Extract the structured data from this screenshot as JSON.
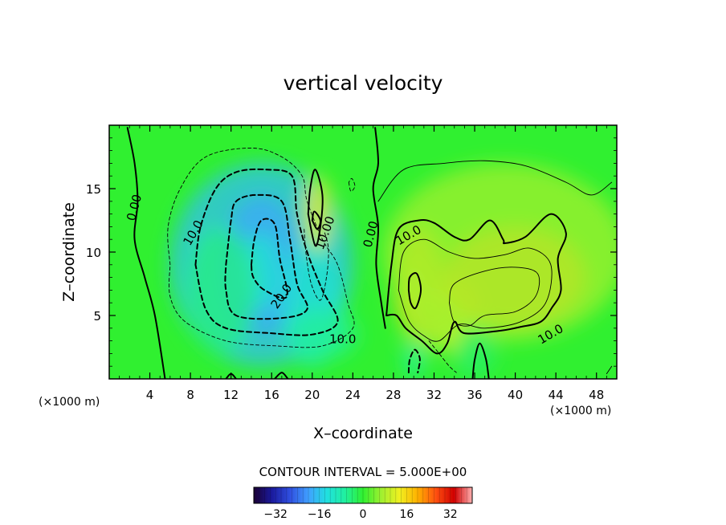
{
  "chart_data": {
    "type": "heatmap",
    "title": "vertical velocity",
    "xlabel": "X–coordinate",
    "ylabel": "Z–coordinate",
    "x_unit_left": "(×1000 m)",
    "x_unit_right": "(×1000 m)",
    "xlim": [
      0,
      50
    ],
    "ylim": [
      0,
      20
    ],
    "xticks": [
      4,
      8,
      12,
      16,
      20,
      24,
      28,
      32,
      36,
      40,
      44,
      48
    ],
    "yticks": [
      5,
      10,
      15
    ],
    "contour_interval_text": "CONTOUR INTERVAL = 5.000E+00",
    "colorbar": {
      "range": [
        -40,
        40
      ],
      "ticks": [
        -32,
        -16,
        0,
        16,
        32
      ],
      "tick_labels": [
        "−32",
        "−16",
        "0",
        "16",
        "32"
      ],
      "colors": [
        "#1a0033",
        "#1a1a9e",
        "#3050e0",
        "#40a0ff",
        "#20e0e0",
        "#20f0a0",
        "#30f030",
        "#a0f030",
        "#f0f020",
        "#ffb000",
        "#ff5010",
        "#d00000",
        "#ffb0b0"
      ]
    },
    "contour_labels": [
      {
        "text": "0.00",
        "x": 2.5,
        "z": 13.5,
        "rotate": -75
      },
      {
        "text": "10.0",
        "x": 8.3,
        "z": 11.5,
        "rotate": -60
      },
      {
        "text": "20.0",
        "x": 17.0,
        "z": 6.5,
        "rotate": -55
      },
      {
        "text": "10.00",
        "x": 21.3,
        "z": 11.5,
        "rotate": -70
      },
      {
        "text": "10.0",
        "x": 23.0,
        "z": 3.1,
        "rotate": 0
      },
      {
        "text": "0.00",
        "x": 25.8,
        "z": 11.4,
        "rotate": -75
      },
      {
        "text": "10.0",
        "x": 29.5,
        "z": 11.3,
        "rotate": -30
      },
      {
        "text": "10.0",
        "x": 43.5,
        "z": 3.5,
        "rotate": -30
      }
    ],
    "blobs": [
      {
        "x": 15,
        "z": 9,
        "rx": 9,
        "rz": 8,
        "value": -14
      },
      {
        "x": 15,
        "z": 9,
        "rx": 4,
        "rz": 5.5,
        "value": -16
      },
      {
        "x": 15,
        "z": 8.5,
        "rx": 2,
        "rz": 3,
        "value": -10
      },
      {
        "x": 20,
        "z": 6,
        "rx": 3,
        "rz": 5,
        "value": -10
      },
      {
        "x": 11,
        "z": 7,
        "rx": 3.5,
        "rz": 5,
        "value": -4
      },
      {
        "x": 21,
        "z": 3.5,
        "rx": 3.5,
        "rz": 2,
        "value": -5
      },
      {
        "x": 20.5,
        "z": 13,
        "rx": 1.4,
        "rz": 3,
        "value": 12
      },
      {
        "x": 20.5,
        "z": 12,
        "rx": 0.8,
        "rz": 1,
        "value": 8
      },
      {
        "x": 30.5,
        "z": 7.5,
        "rx": 2.5,
        "rz": 4.5,
        "value": 14
      },
      {
        "x": 30,
        "z": 7,
        "rx": 1.2,
        "rz": 2,
        "value": 8
      },
      {
        "x": 34,
        "z": 5,
        "rx": 2.5,
        "rz": 3,
        "value": 10
      },
      {
        "x": 40,
        "z": 8,
        "rx": 7,
        "rz": 4,
        "value": 16
      },
      {
        "x": 39,
        "z": 10,
        "rx": 12,
        "rz": 7,
        "value": 6
      },
      {
        "x": 31,
        "z": 4,
        "rx": 2,
        "rz": 2,
        "value": 6
      },
      {
        "x": 36,
        "z": 2,
        "rx": 2,
        "rz": 2,
        "value": -3
      },
      {
        "x": 30,
        "z": 1.5,
        "rx": 1,
        "rz": 1.5,
        "value": -6
      }
    ],
    "contours": [
      {
        "style": "bold-solid",
        "points": [
          [
            1.8,
            19.8
          ],
          [
            2.5,
            17
          ],
          [
            2.8,
            14
          ],
          [
            2.5,
            11
          ],
          [
            3.5,
            8
          ],
          [
            4.5,
            5
          ],
          [
            5.5,
            0
          ]
        ]
      },
      {
        "style": "bold-solid",
        "points": [
          [
            26.2,
            19.8
          ],
          [
            26.5,
            17
          ],
          [
            26,
            15
          ],
          [
            26.5,
            12
          ],
          [
            26.3,
            9
          ],
          [
            26.8,
            6
          ],
          [
            27.2,
            4
          ]
        ]
      },
      {
        "style": "thin-dashed",
        "points": [
          [
            6,
            9
          ],
          [
            5.8,
            12
          ],
          [
            7,
            15
          ],
          [
            9.5,
            17.5
          ],
          [
            14,
            18.2
          ],
          [
            17,
            17.5
          ],
          [
            19,
            16
          ],
          [
            19.5,
            14
          ],
          [
            21,
            11
          ],
          [
            22.5,
            9
          ],
          [
            23.5,
            6
          ],
          [
            24,
            4
          ],
          [
            21,
            2.6
          ],
          [
            16.5,
            2.6
          ],
          [
            11.5,
            3
          ],
          [
            7.5,
            4.5
          ],
          [
            6,
            6.5
          ],
          [
            6,
            9
          ]
        ]
      },
      {
        "style": "bold-dashed",
        "points": [
          [
            8.5,
            9
          ],
          [
            9,
            12
          ],
          [
            10.5,
            15
          ],
          [
            12.5,
            16.3
          ],
          [
            15.5,
            16.5
          ],
          [
            18,
            16
          ],
          [
            18.5,
            13
          ],
          [
            19.5,
            10
          ],
          [
            21,
            7
          ],
          [
            22.5,
            4.5
          ],
          [
            20,
            3.5
          ],
          [
            16,
            3.6
          ],
          [
            11.5,
            4
          ],
          [
            9.5,
            5.5
          ],
          [
            8.5,
            9
          ]
        ]
      },
      {
        "style": "bold-dashed",
        "points": [
          [
            11.5,
            9
          ],
          [
            12,
            12.5
          ],
          [
            12.5,
            14
          ],
          [
            14.5,
            14.5
          ],
          [
            17,
            14
          ],
          [
            17.8,
            11
          ],
          [
            18.5,
            7.5
          ],
          [
            19.5,
            5.5
          ],
          [
            17,
            4.8
          ],
          [
            12.5,
            5
          ],
          [
            11.5,
            7
          ],
          [
            11.5,
            9
          ]
        ]
      },
      {
        "style": "bold-dashed",
        "points": [
          [
            14,
            9
          ],
          [
            14.3,
            11
          ],
          [
            15,
            12.5
          ],
          [
            16.3,
            12.2
          ],
          [
            16.8,
            9.5
          ],
          [
            17.5,
            6.5
          ],
          [
            15.3,
            7
          ],
          [
            14.2,
            8
          ],
          [
            14,
            9
          ]
        ]
      },
      {
        "style": "bold-solid",
        "points": [
          [
            19.6,
            13
          ],
          [
            19.8,
            15
          ],
          [
            20.3,
            16.5
          ],
          [
            21,
            14.5
          ],
          [
            20.8,
            12
          ],
          [
            20.3,
            10.5
          ],
          [
            19.6,
            13
          ]
        ]
      },
      {
        "style": "bold-solid",
        "points": [
          [
            20,
            12.5
          ],
          [
            20.2,
            13.2
          ],
          [
            20.8,
            12.5
          ],
          [
            20.5,
            11.8
          ],
          [
            20,
            12.5
          ]
        ]
      },
      {
        "style": "bold-solid",
        "points": [
          [
            27.3,
            5
          ],
          [
            27.8,
            9
          ],
          [
            28.5,
            11.8
          ],
          [
            30.5,
            12.5
          ],
          [
            32,
            12.3
          ],
          [
            34,
            11.2
          ],
          [
            35.5,
            11
          ],
          [
            37.5,
            12.5
          ],
          [
            38.8,
            11
          ],
          [
            39,
            10.7
          ],
          [
            41,
            11.2
          ],
          [
            43.5,
            13
          ],
          [
            45,
            11.5
          ],
          [
            44.2,
            9.5
          ],
          [
            44.5,
            7
          ],
          [
            43.6,
            5.6
          ],
          [
            42.5,
            4.5
          ],
          [
            40.5,
            4.1
          ],
          [
            38.5,
            3.8
          ],
          [
            35,
            3.6
          ],
          [
            34,
            4.5
          ],
          [
            33.3,
            2.8
          ],
          [
            32.3,
            2
          ],
          [
            30.8,
            3
          ],
          [
            29.2,
            4
          ],
          [
            28.3,
            5
          ],
          [
            27.3,
            5
          ]
        ]
      },
      {
        "style": "thin-solid",
        "points": [
          [
            28.5,
            7
          ],
          [
            29,
            10
          ],
          [
            31,
            11
          ],
          [
            33.5,
            10
          ],
          [
            36,
            9.5
          ],
          [
            39,
            9.8
          ],
          [
            41.5,
            10.3
          ],
          [
            43.5,
            9
          ],
          [
            43,
            6
          ],
          [
            40.5,
            4.5
          ],
          [
            37,
            4
          ],
          [
            34.5,
            4.3
          ],
          [
            32.5,
            3
          ],
          [
            31,
            3.4
          ],
          [
            29.5,
            4.6
          ],
          [
            28.5,
            7
          ]
        ]
      },
      {
        "style": "bold-solid",
        "points": [
          [
            29.5,
            7
          ],
          [
            29.6,
            8
          ],
          [
            30.3,
            8.3
          ],
          [
            30.7,
            7
          ],
          [
            30.2,
            5.6
          ],
          [
            29.7,
            6
          ],
          [
            29.5,
            7
          ]
        ]
      },
      {
        "style": "thin-solid",
        "points": [
          [
            33.5,
            6
          ],
          [
            34,
            7.5
          ],
          [
            37,
            8.5
          ],
          [
            40,
            8.8
          ],
          [
            42.2,
            8.3
          ],
          [
            42,
            6.5
          ],
          [
            40,
            5.3
          ],
          [
            37,
            5
          ],
          [
            35.5,
            4.2
          ],
          [
            34,
            4.5
          ],
          [
            33.5,
            6
          ]
        ]
      },
      {
        "style": "thin-solid",
        "points": [
          [
            26.5,
            14
          ],
          [
            29,
            16.5
          ],
          [
            33,
            17
          ],
          [
            37,
            17.2
          ],
          [
            41,
            16.8
          ],
          [
            45,
            15.5
          ],
          [
            47.5,
            14.5
          ],
          [
            49.5,
            15.5
          ]
        ]
      },
      {
        "style": "thin-dashed",
        "points": [
          [
            31.5,
            3
          ],
          [
            32.5,
            2
          ],
          [
            33.5,
            1
          ],
          [
            34.2,
            0.5
          ]
        ]
      },
      {
        "style": "bold-solid",
        "points": [
          [
            35.8,
            0
          ],
          [
            36,
            1.5
          ],
          [
            36.5,
            2.8
          ],
          [
            37.1,
            1.6
          ],
          [
            37.4,
            0
          ]
        ]
      },
      {
        "style": "bold-dashed",
        "points": [
          [
            29.5,
            0.5
          ],
          [
            29.6,
            1.5
          ],
          [
            30.1,
            2.3
          ],
          [
            30.6,
            1.6
          ],
          [
            30.4,
            0.5
          ]
        ]
      },
      {
        "style": "bold-solid",
        "points": [
          [
            11.5,
            0
          ],
          [
            12,
            0.4
          ],
          [
            12.5,
            0
          ]
        ]
      },
      {
        "style": "bold-solid",
        "points": [
          [
            16.3,
            0
          ],
          [
            17,
            0.5
          ],
          [
            17.6,
            0
          ]
        ]
      },
      {
        "style": "thin-dashed",
        "points": [
          [
            23.6,
            15.5
          ],
          [
            23.8,
            14.8
          ],
          [
            24.2,
            15.2
          ],
          [
            23.9,
            15.8
          ],
          [
            23.6,
            15.5
          ]
        ]
      },
      {
        "style": "thin-dashed",
        "points": [
          [
            19.2,
            11.8
          ],
          [
            19.4,
            9.8
          ],
          [
            19.9,
            7.5
          ],
          [
            20.8,
            6.2
          ],
          [
            21.4,
            8
          ],
          [
            21.6,
            10.2
          ],
          [
            21.2,
            11.6
          ]
        ]
      },
      {
        "style": "thin-solid",
        "points": [
          [
            49,
            0.4
          ],
          [
            49.5,
            1
          ]
        ]
      }
    ]
  }
}
